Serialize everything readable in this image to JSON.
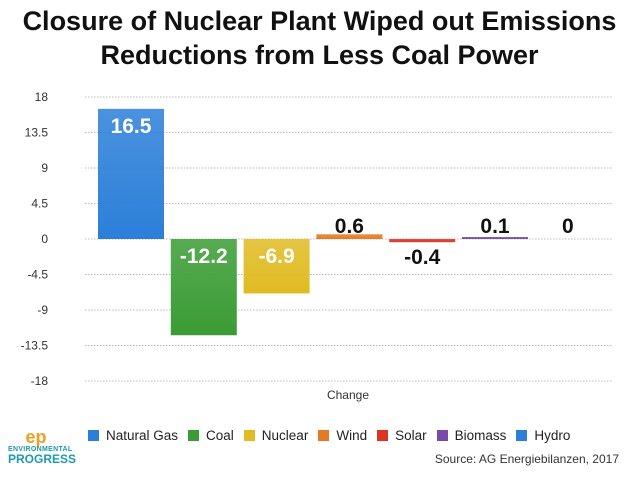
{
  "chart_data": {
    "type": "bar",
    "title": "Closure of Nuclear Plant Wiped out Emissions Reductions from Less Coal Power",
    "title_lines": [
      "Closure of Nuclear Plant Wiped out Emissions",
      "Reductions from Less Coal Power"
    ],
    "xlabel": "Change",
    "ylabel": "",
    "ylim": [
      -18,
      18
    ],
    "yticks": [
      "18",
      "13.5",
      "9",
      "4.5",
      "0",
      "-4.5",
      "-9",
      "-13.5",
      "-18"
    ],
    "grid": true,
    "legend_position": "bottom",
    "series": [
      {
        "name": "Natural Gas",
        "value": 16.5,
        "label": "16.5",
        "color": "#2b7fd9"
      },
      {
        "name": "Coal",
        "value": -12.2,
        "label": "-12.2",
        "color": "#3a9c34"
      },
      {
        "name": "Nuclear",
        "value": -6.9,
        "label": "-6.9",
        "color": "#e0bb22"
      },
      {
        "name": "Wind",
        "value": 0.6,
        "label": "0.6",
        "color": "#e67a22"
      },
      {
        "name": "Solar",
        "value": -0.4,
        "label": "-0.4",
        "color": "#dd3322"
      },
      {
        "name": "Biomass",
        "value": 0.1,
        "label": "0.1",
        "color": "#7a4aa8"
      },
      {
        "name": "Hydro",
        "value": 0,
        "label": "0",
        "color": "#2b7fd9"
      }
    ]
  },
  "source": "Source: AG Energiebilanzen, 2017",
  "logo": {
    "mark": "ep",
    "line1": "ENVIRONMENTAL",
    "line2": "PROGRESS"
  }
}
